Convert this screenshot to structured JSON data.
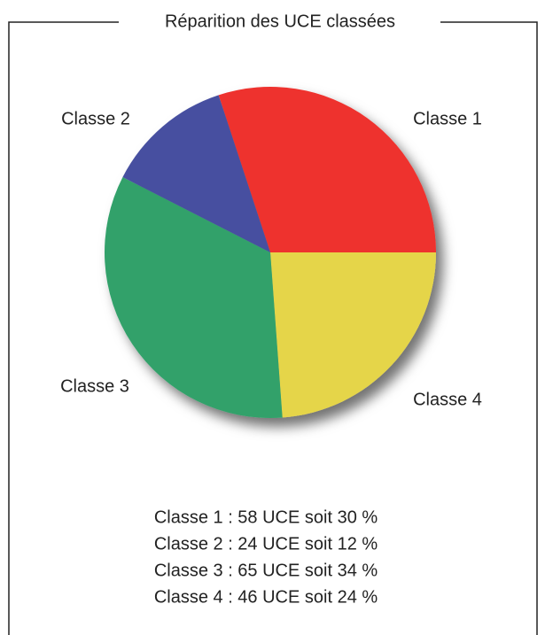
{
  "chart_data": {
    "type": "pie",
    "title": "Réparition des UCE classées",
    "categories": [
      "Classe 1",
      "Classe 2",
      "Classe 3",
      "Classe 4"
    ],
    "values": [
      58,
      24,
      65,
      46
    ],
    "colors": [
      "#ee322d",
      "#4650a0",
      "#33a16b",
      "#e5d54a"
    ],
    "summary": [
      "Classe 1 : 58 UCE soit 30 %",
      "Classe 2 : 24 UCE soit 12 %",
      "Classe 3 : 65 UCE soit 34 %",
      "Classe 4 : 46 UCE soit 24 %"
    ]
  }
}
